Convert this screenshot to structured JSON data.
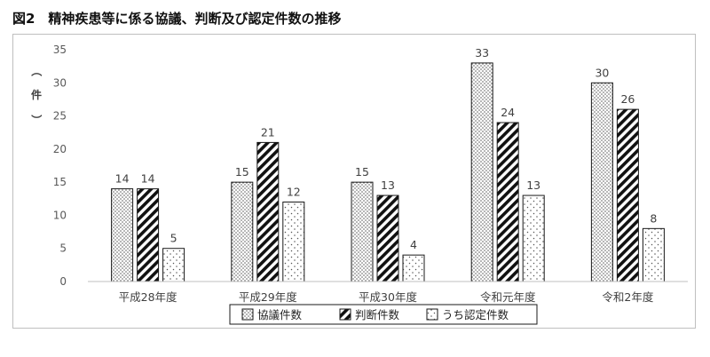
{
  "title": "図2　精神疾患等に係る協議、判断及び認定件数の推移",
  "chart_data": {
    "type": "bar",
    "title": "",
    "ylabel_chars": [
      "（",
      "件",
      "）"
    ],
    "xlabel": "",
    "ylim": [
      0,
      35
    ],
    "yticks": [
      0,
      5,
      10,
      15,
      20,
      25,
      30,
      35
    ],
    "grid": false,
    "legend_position": "bottom",
    "categories": [
      "平成28年度",
      "平成29年度",
      "平成30年度",
      "令和元年度",
      "令和2年度"
    ],
    "series": [
      {
        "name": "協議件数",
        "values": [
          14,
          15,
          15,
          33,
          30
        ],
        "pattern": "dots-dense"
      },
      {
        "name": "判断件数",
        "values": [
          14,
          21,
          13,
          24,
          26
        ],
        "pattern": "diagonal-stripes"
      },
      {
        "name": "うち認定件数",
        "values": [
          5,
          12,
          4,
          13,
          8
        ],
        "pattern": "dots-sparse"
      }
    ]
  }
}
